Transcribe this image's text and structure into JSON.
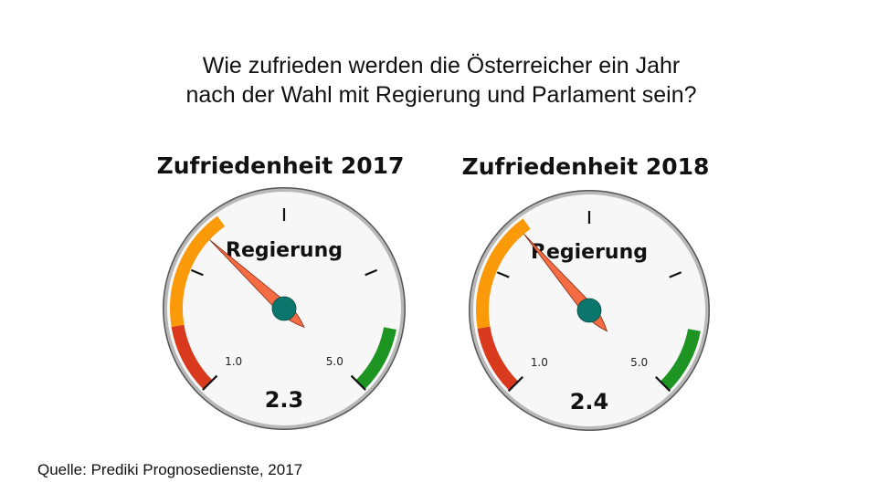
{
  "title": {
    "line1": "Wie zufrieden werden die Österreicher ein Jahr",
    "line2": "nach der Wahl mit Regierung und Parlament sein?"
  },
  "source": "Quelle: Prediki Prognosedienste,  2017",
  "colors": {
    "red": "#d9391c",
    "orange": "#fb9a08",
    "green": "#1e9423",
    "needle": "#f56b44",
    "hub": "#0b776c",
    "face": "#f7f7f7",
    "rim": "#b8b8b8"
  },
  "chart_data": [
    {
      "type": "gauge",
      "title": "Zufriedenheit 2017",
      "label": "Regierung",
      "value": 2.3,
      "value_label": "2.3",
      "min": 1.0,
      "max": 5.0,
      "min_label": "1.0",
      "max_label": "5.0",
      "ticks": [
        1,
        2,
        3,
        4,
        5
      ],
      "bands": [
        {
          "from": 1.0,
          "to": 1.53,
          "color": "red"
        },
        {
          "from": 1.53,
          "to": 2.47,
          "color": "orange"
        },
        {
          "from": 4.49,
          "to": 5.0,
          "color": "green"
        }
      ]
    },
    {
      "type": "gauge",
      "title": "Zufriedenheit 2018",
      "label": "Regierung",
      "value": 2.4,
      "value_label": "2.4",
      "min": 1.0,
      "max": 5.0,
      "min_label": "1.0",
      "max_label": "5.0",
      "ticks": [
        1,
        2,
        3,
        4,
        5
      ],
      "bands": [
        {
          "from": 1.0,
          "to": 1.53,
          "color": "red"
        },
        {
          "from": 1.53,
          "to": 2.47,
          "color": "orange"
        },
        {
          "from": 4.49,
          "to": 5.0,
          "color": "green"
        }
      ]
    }
  ]
}
